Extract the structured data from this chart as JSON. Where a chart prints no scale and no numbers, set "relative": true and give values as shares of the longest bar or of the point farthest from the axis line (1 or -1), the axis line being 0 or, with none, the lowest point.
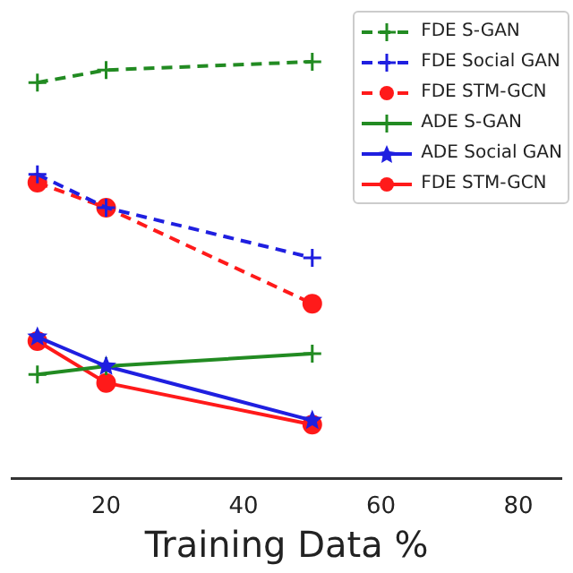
{
  "chart_data": {
    "type": "line",
    "xlabel": "Training Data %",
    "relative": true,
    "x": [
      10,
      20,
      50
    ],
    "xlim": [
      6.25,
      86.25
    ],
    "xticks": [
      20,
      40,
      60,
      80
    ],
    "grid": false,
    "legend": "top right",
    "series": [
      {
        "name": "FDE S-GAN",
        "color": "#228b22",
        "values": [
          0.95,
          0.98,
          1
        ],
        "line_style": "dashed",
        "marker": "cross"
      },
      {
        "name": "FDE Social GAN",
        "color": "#1f1fe0",
        "values": [
          0.73,
          0.65,
          0.53
        ],
        "line_style": "dashed",
        "marker": "cross"
      },
      {
        "name": "FDE STM-GCN",
        "color": "#ff1a1a",
        "values": [
          0.71,
          0.65,
          0.42
        ],
        "line_style": "dashed",
        "marker": "circle"
      },
      {
        "name": "ADE S-GAN",
        "color": "#228b22",
        "values": [
          0.25,
          0.27,
          0.3
        ],
        "line_style": "solid",
        "marker": "cross"
      },
      {
        "name": "ADE Social GAN",
        "color": "#1f1fe0",
        "values": [
          0.34,
          0.27,
          0.14
        ],
        "line_style": "solid",
        "marker": "star"
      },
      {
        "name": "FDE STM-GCN",
        "color": "#ff1a1a",
        "values": [
          0.33,
          0.23,
          0.13
        ],
        "line_style": "solid",
        "marker": "circle"
      }
    ]
  }
}
